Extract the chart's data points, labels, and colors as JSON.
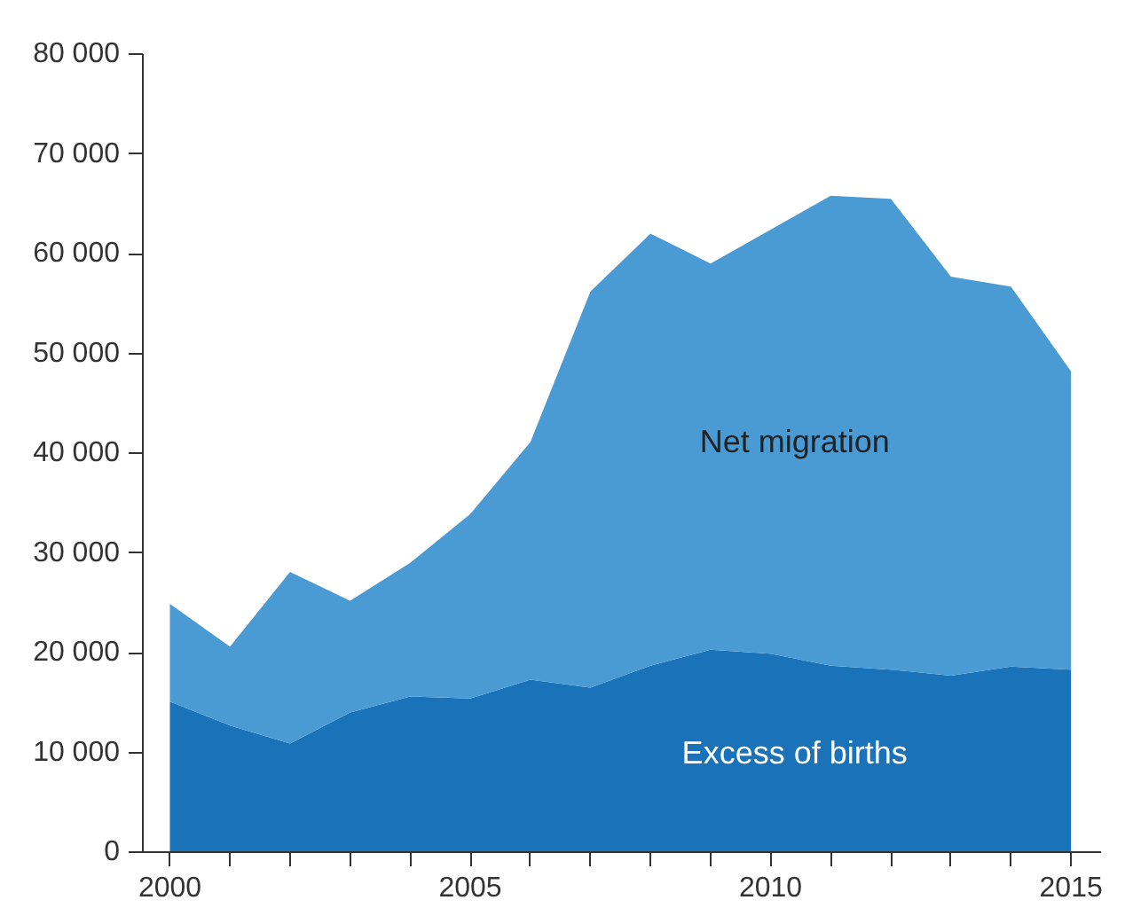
{
  "chart_data": {
    "type": "area",
    "stacked": true,
    "x": [
      2000,
      2001,
      2002,
      2003,
      2004,
      2005,
      2006,
      2007,
      2008,
      2009,
      2010,
      2011,
      2012,
      2013,
      2014,
      2015
    ],
    "series": [
      {
        "name": "Excess of births",
        "color": "#1a73b9",
        "values": [
          15100,
          12700,
          10900,
          14000,
          15600,
          15400,
          17300,
          16500,
          18700,
          20300,
          19900,
          18700,
          18300,
          17700,
          18600,
          18300
        ]
      },
      {
        "name": "Net migration",
        "color": "#4a9bd4",
        "values": [
          9800,
          7900,
          17200,
          11200,
          13400,
          18500,
          23800,
          39700,
          43300,
          38700,
          42500,
          47100,
          47200,
          40000,
          38100,
          29900
        ]
      }
    ],
    "xlim": [
      1999.55,
      2015.5
    ],
    "xticks": [
      2000,
      {
        "value": 2001,
        "label": null
      },
      {
        "value": 2002,
        "label": null
      },
      {
        "value": 2003,
        "label": null
      },
      {
        "value": 2004,
        "label": null
      },
      2005,
      {
        "value": 2006,
        "label": null
      },
      {
        "value": 2007,
        "label": null
      },
      {
        "value": 2008,
        "label": null
      },
      {
        "value": 2009,
        "label": null
      },
      2010,
      {
        "value": 2011,
        "label": null
      },
      {
        "value": 2012,
        "label": null
      },
      {
        "value": 2013,
        "label": null
      },
      {
        "value": 2014,
        "label": null
      },
      2015
    ],
    "ylim": [
      0,
      80000
    ],
    "yticks": [
      0,
      {
        "value": 10000,
        "label": "10 000"
      },
      {
        "value": 20000,
        "label": "20 000"
      },
      {
        "value": 30000,
        "label": "30 000"
      },
      {
        "value": 40000,
        "label": "40 000"
      },
      {
        "value": 50000,
        "label": "50 000"
      },
      {
        "value": 60000,
        "label": "60 000"
      },
      {
        "value": 70000,
        "label": "70 000"
      },
      {
        "value": 80000,
        "label": "80 000"
      }
    ],
    "grid": false
  }
}
